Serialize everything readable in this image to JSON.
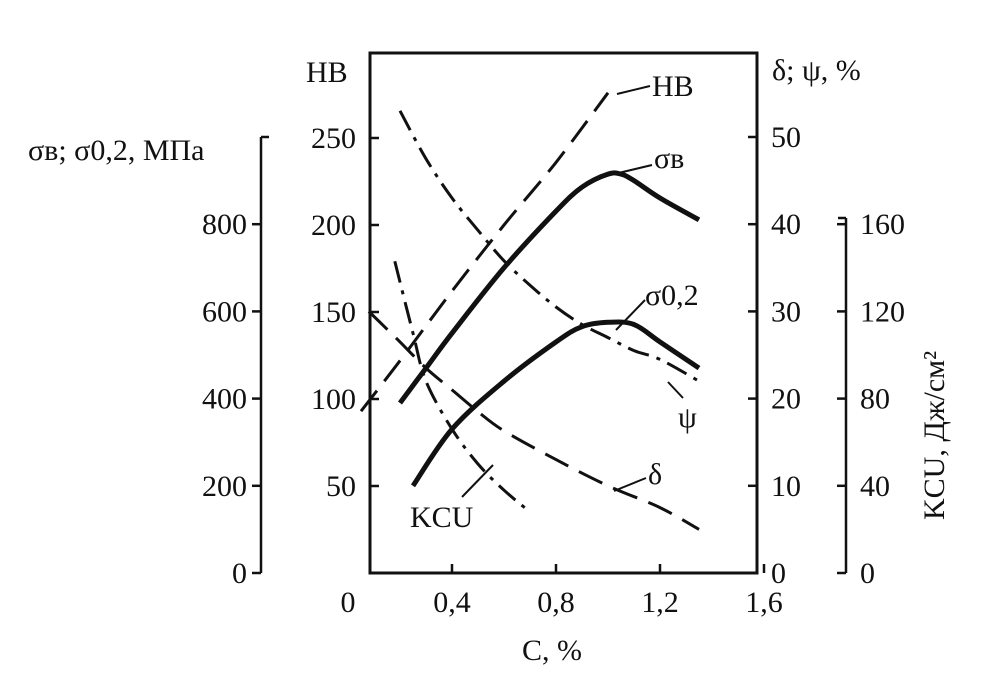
{
  "chart_data": {
    "type": "line",
    "x": {
      "label": "C, %",
      "range": [
        0,
        1.6
      ],
      "ticks": [
        0,
        0.4,
        0.8,
        1.2,
        1.6
      ],
      "tick_labels": [
        "0",
        "0,4",
        "0,8",
        "1,2",
        "1,6"
      ]
    },
    "axes": {
      "strength": {
        "label": "σв; σ0,2, МПа",
        "range": [
          0,
          900
        ],
        "ticks": [
          0,
          200,
          400,
          600,
          800
        ],
        "side": "left-outer"
      },
      "hb": {
        "label": "НВ",
        "range": [
          0,
          290
        ],
        "ticks": [
          50,
          100,
          150,
          200,
          250
        ],
        "side": "left-inner"
      },
      "ductility": {
        "label": "δ; ψ, %",
        "range": [
          0,
          58
        ],
        "ticks": [
          0,
          10,
          20,
          30,
          40,
          50
        ],
        "side": "right-inner"
      },
      "kcu": {
        "label": "KCU, Дж/см²",
        "range": [
          0,
          180
        ],
        "ticks": [
          0,
          40,
          80,
          120,
          160
        ],
        "side": "right-outer"
      }
    },
    "series": [
      {
        "name": "НВ",
        "axis": "hb",
        "style": "dashed",
        "points": [
          [
            0.05,
            93
          ],
          [
            0.2,
            122
          ],
          [
            0.4,
            162
          ],
          [
            0.6,
            200
          ],
          [
            0.8,
            236
          ],
          [
            1.0,
            276
          ]
        ]
      },
      {
        "name": "σв",
        "axis": "strength",
        "style": "solid",
        "points": [
          [
            0.2,
            390
          ],
          [
            0.3,
            470
          ],
          [
            0.4,
            550
          ],
          [
            0.6,
            700
          ],
          [
            0.8,
            830
          ],
          [
            0.9,
            885
          ],
          [
            1.0,
            915
          ],
          [
            1.05,
            915
          ],
          [
            1.1,
            900
          ],
          [
            1.2,
            860
          ],
          [
            1.35,
            810
          ]
        ]
      },
      {
        "name": "σ0,2",
        "axis": "strength",
        "style": "solid",
        "points": [
          [
            0.25,
            200
          ],
          [
            0.4,
            330
          ],
          [
            0.6,
            440
          ],
          [
            0.8,
            530
          ],
          [
            0.9,
            565
          ],
          [
            1.0,
            575
          ],
          [
            1.1,
            570
          ],
          [
            1.2,
            530
          ],
          [
            1.35,
            470
          ]
        ]
      },
      {
        "name": "ψ",
        "axis": "ductility",
        "style": "dash-dot",
        "points": [
          [
            0.2,
            53
          ],
          [
            0.3,
            47.5
          ],
          [
            0.4,
            43
          ],
          [
            0.5,
            39.3
          ],
          [
            0.6,
            35.8
          ],
          [
            0.7,
            33
          ],
          [
            0.8,
            30.5
          ],
          [
            0.9,
            28.5
          ],
          [
            1.0,
            27
          ],
          [
            1.1,
            25.5
          ],
          [
            1.2,
            24.5
          ],
          [
            1.35,
            22
          ]
        ]
      },
      {
        "name": "δ",
        "axis": "ductility",
        "style": "dashed",
        "points": [
          [
            0.08,
            30
          ],
          [
            0.2,
            26.5
          ],
          [
            0.3,
            23.5
          ],
          [
            0.4,
            21
          ],
          [
            0.5,
            18.5
          ],
          [
            0.6,
            16.3
          ],
          [
            0.8,
            13
          ],
          [
            1.0,
            10
          ],
          [
            1.2,
            7.5
          ],
          [
            1.35,
            5
          ]
        ]
      },
      {
        "name": "KCU",
        "axis": "kcu",
        "style": "dash-dot",
        "points": [
          [
            0.18,
            143
          ],
          [
            0.25,
            110
          ],
          [
            0.3,
            88
          ],
          [
            0.4,
            66
          ],
          [
            0.5,
            50
          ],
          [
            0.6,
            38
          ],
          [
            0.7,
            28
          ]
        ]
      }
    ],
    "labels": {
      "hb_curve": "НВ",
      "sigma_b_curve": "σв",
      "sigma02_curve": "σ0,2",
      "psi_curve": "ψ",
      "delta_curve": "δ",
      "kcu_curve": "KCU"
    },
    "grid": false,
    "legend": "none"
  }
}
